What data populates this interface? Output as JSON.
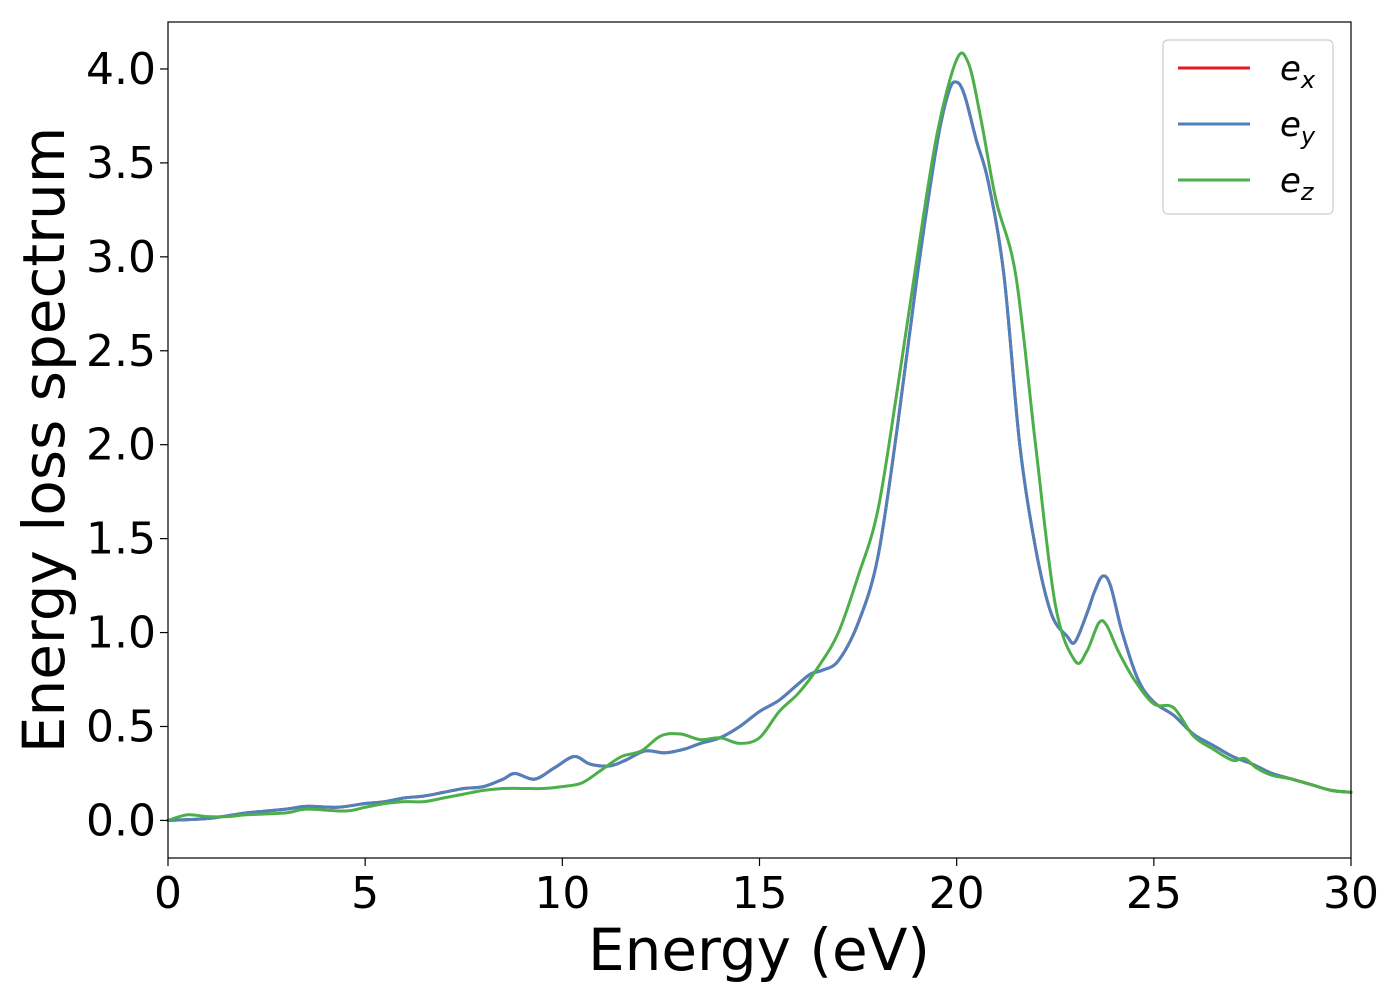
{
  "chart_data": {
    "type": "line",
    "title": "",
    "xlabel": "Energy (eV)",
    "ylabel": "Energy loss spectrum",
    "xlim": [
      0,
      30
    ],
    "ylim": [
      -0.2,
      4.25
    ],
    "xticks": [
      0,
      5,
      10,
      15,
      20,
      25,
      30
    ],
    "xtick_labels": [
      "0",
      "5",
      "10",
      "15",
      "20",
      "25",
      "30"
    ],
    "yticks": [
      0.0,
      0.5,
      1.0,
      1.5,
      2.0,
      2.5,
      3.0,
      3.5,
      4.0
    ],
    "ytick_labels": [
      "0.0",
      "0.5",
      "1.0",
      "1.5",
      "2.0",
      "2.5",
      "3.0",
      "3.5",
      "4.0"
    ],
    "grid": false,
    "legend_position": "top-right",
    "series": [
      {
        "name": "e_x",
        "legend_base": "e",
        "legend_sub": "x",
        "color": "#e41a1c",
        "x": [
          0,
          1,
          2,
          3,
          3.5,
          4.3,
          5,
          5.5,
          6,
          6.5,
          7,
          7.5,
          8,
          8.5,
          8.8,
          9.3,
          9.8,
          10.3,
          10.7,
          11.2,
          11.6,
          12.1,
          12.6,
          13.1,
          13.5,
          14,
          14.5,
          15,
          15.5,
          16,
          16.3,
          16.6,
          17,
          17.5,
          18,
          18.5,
          19,
          19.5,
          19.8,
          20,
          20.2,
          20.5,
          20.8,
          21.2,
          21.6,
          22,
          22.4,
          22.8,
          23,
          23.3,
          23.5,
          23.7,
          23.9,
          24.2,
          24.6,
          25,
          25.5,
          26,
          26.5,
          27,
          27.5,
          28,
          28.5,
          29,
          29.5,
          30
        ],
        "y": [
          0.0,
          0.01,
          0.04,
          0.06,
          0.075,
          0.07,
          0.09,
          0.1,
          0.12,
          0.13,
          0.15,
          0.17,
          0.18,
          0.22,
          0.25,
          0.22,
          0.28,
          0.34,
          0.3,
          0.29,
          0.32,
          0.37,
          0.36,
          0.38,
          0.41,
          0.44,
          0.5,
          0.58,
          0.64,
          0.73,
          0.78,
          0.8,
          0.85,
          1.05,
          1.4,
          2.1,
          2.9,
          3.6,
          3.88,
          3.93,
          3.86,
          3.62,
          3.4,
          2.9,
          2.0,
          1.45,
          1.1,
          0.98,
          0.95,
          1.1,
          1.22,
          1.3,
          1.25,
          1.0,
          0.75,
          0.63,
          0.56,
          0.46,
          0.4,
          0.34,
          0.3,
          0.25,
          0.22,
          0.19,
          0.16,
          0.15
        ]
      },
      {
        "name": "e_y",
        "legend_base": "e",
        "legend_sub": "y",
        "color": "#4f81bd",
        "x": [
          0,
          1,
          2,
          3,
          3.5,
          4.3,
          5,
          5.5,
          6,
          6.5,
          7,
          7.5,
          8,
          8.5,
          8.8,
          9.3,
          9.8,
          10.3,
          10.7,
          11.2,
          11.6,
          12.1,
          12.6,
          13.1,
          13.5,
          14,
          14.5,
          15,
          15.5,
          16,
          16.3,
          16.6,
          17,
          17.5,
          18,
          18.5,
          19,
          19.5,
          19.8,
          20,
          20.2,
          20.5,
          20.8,
          21.2,
          21.6,
          22,
          22.4,
          22.8,
          23,
          23.3,
          23.5,
          23.7,
          23.9,
          24.2,
          24.6,
          25,
          25.5,
          26,
          26.5,
          27,
          27.5,
          28,
          28.5,
          29,
          29.5,
          30
        ],
        "y": [
          0.0,
          0.01,
          0.04,
          0.06,
          0.075,
          0.07,
          0.09,
          0.1,
          0.12,
          0.13,
          0.15,
          0.17,
          0.18,
          0.22,
          0.25,
          0.22,
          0.28,
          0.34,
          0.3,
          0.29,
          0.32,
          0.37,
          0.36,
          0.38,
          0.41,
          0.44,
          0.5,
          0.58,
          0.64,
          0.73,
          0.78,
          0.8,
          0.85,
          1.05,
          1.4,
          2.1,
          2.9,
          3.6,
          3.88,
          3.93,
          3.86,
          3.62,
          3.4,
          2.9,
          2.0,
          1.45,
          1.1,
          0.98,
          0.95,
          1.1,
          1.22,
          1.3,
          1.25,
          1.0,
          0.75,
          0.63,
          0.56,
          0.46,
          0.4,
          0.34,
          0.3,
          0.25,
          0.22,
          0.19,
          0.16,
          0.15
        ]
      },
      {
        "name": "e_z",
        "legend_base": "e",
        "legend_sub": "z",
        "color": "#4daf4a",
        "x": [
          0,
          0.5,
          1,
          1.5,
          2,
          3,
          3.5,
          4.5,
          5,
          5.5,
          6,
          6.5,
          7,
          7.5,
          8,
          8.5,
          9,
          9.5,
          10,
          10.5,
          11,
          11.5,
          12,
          12.5,
          13,
          13.5,
          14,
          14.5,
          15,
          15.5,
          16,
          16.5,
          17,
          17.5,
          18,
          18.5,
          19,
          19.5,
          20,
          20.3,
          20.6,
          21,
          21.5,
          22,
          22.5,
          23,
          23.3,
          23.6,
          23.8,
          24.1,
          24.5,
          25,
          25.5,
          26,
          26.5,
          27,
          27.3,
          27.6,
          28,
          28.5,
          29,
          29.5,
          30
        ],
        "y": [
          0.0,
          0.03,
          0.02,
          0.02,
          0.03,
          0.04,
          0.06,
          0.05,
          0.07,
          0.09,
          0.1,
          0.1,
          0.12,
          0.14,
          0.16,
          0.17,
          0.17,
          0.17,
          0.18,
          0.2,
          0.27,
          0.34,
          0.37,
          0.45,
          0.46,
          0.43,
          0.44,
          0.41,
          0.44,
          0.58,
          0.68,
          0.82,
          1.0,
          1.3,
          1.65,
          2.3,
          3.0,
          3.65,
          4.05,
          4.03,
          3.75,
          3.3,
          2.9,
          2.0,
          1.15,
          0.85,
          0.9,
          1.05,
          1.04,
          0.9,
          0.75,
          0.62,
          0.6,
          0.45,
          0.38,
          0.32,
          0.33,
          0.28,
          0.24,
          0.22,
          0.19,
          0.16,
          0.15
        ]
      }
    ]
  }
}
